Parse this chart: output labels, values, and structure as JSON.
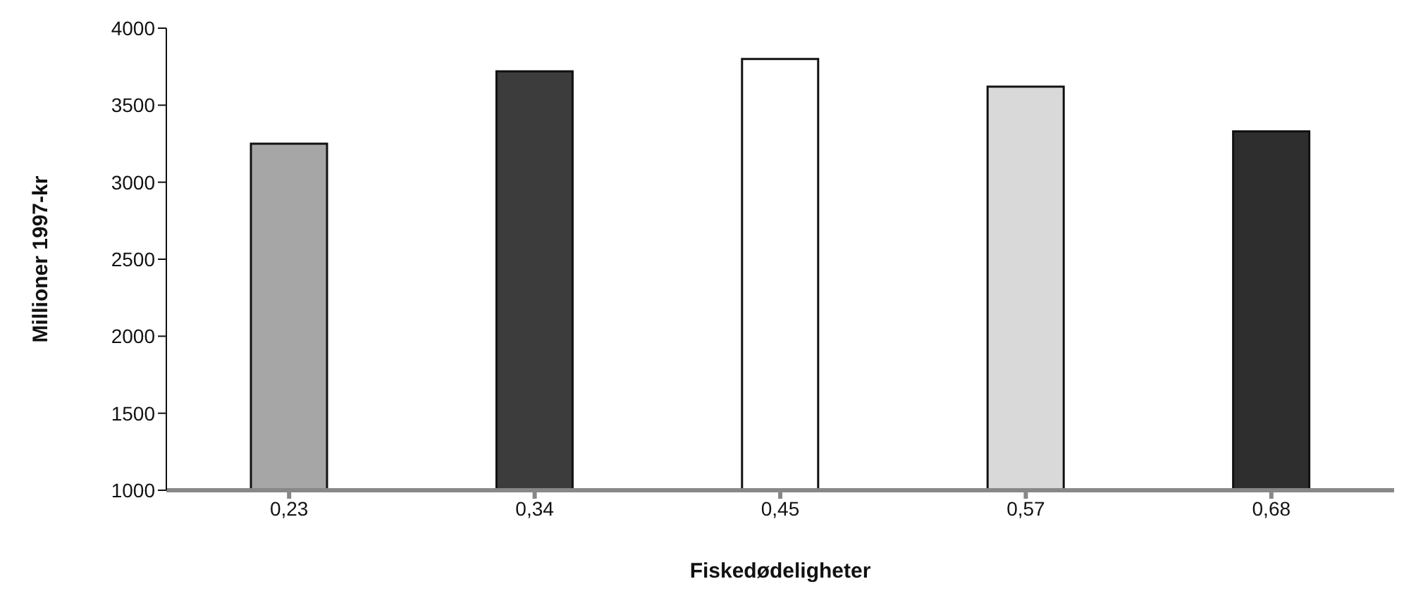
{
  "chart_data": {
    "type": "bar",
    "xlabel": "Fiskedødeligheter",
    "ylabel": "Millioner 1997-kr",
    "categories": [
      "0,23",
      "0,34",
      "0,45",
      "0,57",
      "0,68"
    ],
    "values": [
      3250,
      3720,
      3800,
      3620,
      3330
    ],
    "colors": [
      "#a6a6a6",
      "#3c3c3c",
      "#ffffff",
      "#d9d9d9",
      "#2e2e2e"
    ],
    "ylim": [
      1000,
      4000
    ],
    "yticks": [
      1000,
      1500,
      2000,
      2500,
      3000,
      3500,
      4000
    ],
    "grid": false,
    "legend": false
  }
}
